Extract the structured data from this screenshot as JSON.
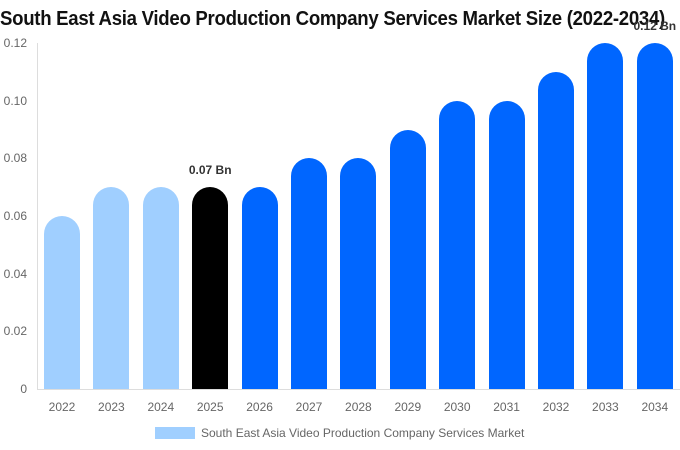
{
  "chart_data": {
    "type": "bar",
    "title": "South East Asia Video Production Company Services Market Size (2022-2034)",
    "xlabel": "",
    "ylabel": "",
    "ylim": [
      0,
      0.12
    ],
    "yticks": [
      "0",
      "0.02",
      "0.04",
      "0.06",
      "0.08",
      "0.10",
      "0.12"
    ],
    "categories": [
      "2022",
      "2023",
      "2024",
      "2025",
      "2026",
      "2027",
      "2028",
      "2029",
      "2030",
      "2031",
      "2032",
      "2033",
      "2034"
    ],
    "series": [
      {
        "name": "South East Asia Video Production Company Services Market",
        "values": [
          0.06,
          0.07,
          0.07,
          0.07,
          0.07,
          0.08,
          0.08,
          0.09,
          0.1,
          0.1,
          0.11,
          0.12,
          0.12
        ]
      }
    ],
    "bar_colors": [
      "#a0cfff",
      "#a0cfff",
      "#a0cfff",
      "#000000",
      "#0066ff",
      "#0066ff",
      "#0066ff",
      "#0066ff",
      "#0066ff",
      "#0066ff",
      "#0066ff",
      "#0066ff",
      "#0066ff"
    ],
    "annotations": [
      {
        "category": "2025",
        "text": "0.07 Bn"
      },
      {
        "category": "2034",
        "text": "0.12 Bn"
      }
    ],
    "legend": {
      "position": "bottom",
      "label": "South East Asia Video Production Company Services Market",
      "color": "#a0cfff"
    },
    "grid": false
  }
}
